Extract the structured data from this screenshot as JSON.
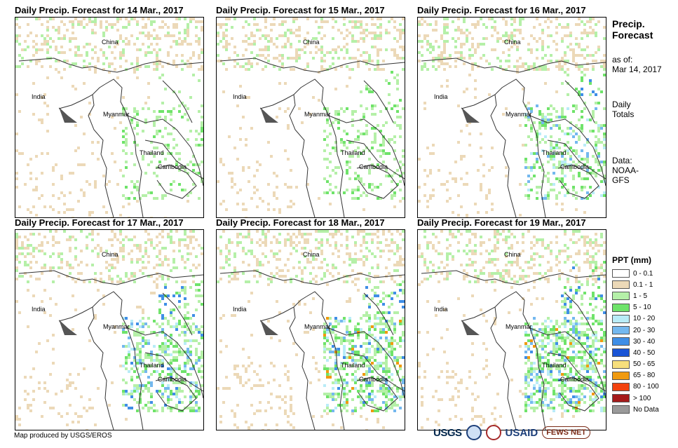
{
  "panels": [
    {
      "title": "Daily Precip. Forecast for 14 Mar., 2017"
    },
    {
      "title": "Daily Precip. Forecast for 15 Mar., 2017"
    },
    {
      "title": "Daily Precip. Forecast for 16 Mar., 2017"
    },
    {
      "title": "Daily Precip. Forecast for 17 Mar., 2017"
    },
    {
      "title": "Daily Precip. Forecast for 18 Mar., 2017"
    },
    {
      "title": "Daily Precip. Forecast for 19 Mar., 2017"
    }
  ],
  "countries": {
    "china": "China",
    "india": "India",
    "myanmar": "Myanmar",
    "thailand": "Thailand",
    "cambodia": "Cambodia"
  },
  "sidebar": {
    "title_line1": "Precip.",
    "title_line2": "Forecast",
    "asof_label": "as of:",
    "asof_date": "Mar 14, 2017",
    "totals_line1": "Daily",
    "totals_line2": "Totals",
    "data_line1": "Data:",
    "data_line2": "NOAA-",
    "data_line3": "GFS"
  },
  "legend": {
    "title": "PPT (mm)",
    "items": [
      {
        "label": "0 - 0.1",
        "color": "#ffffff"
      },
      {
        "label": "0.1 - 1",
        "color": "#ecd9b8"
      },
      {
        "label": "1 - 5",
        "color": "#b5f0a8"
      },
      {
        "label": "5 - 10",
        "color": "#6fe36a"
      },
      {
        "label": "10 - 20",
        "color": "#b9ecf7"
      },
      {
        "label": "20 - 30",
        "color": "#74b8ef"
      },
      {
        "label": "30 - 40",
        "color": "#3f8ee6"
      },
      {
        "label": "40 - 50",
        "color": "#1a55d6"
      },
      {
        "label": "50 - 65",
        "color": "#f7df7c"
      },
      {
        "label": "65 - 80",
        "color": "#f09a10"
      },
      {
        "label": "80 - 100",
        "color": "#f2420f"
      },
      {
        "label": "> 100",
        "color": "#a51b1b"
      },
      {
        "label": "No Data",
        "color": "#9a9a9a"
      }
    ]
  },
  "credit": "Map produced by USGS/EROS",
  "logos": {
    "usgs": "USGS",
    "usaid": "USAID",
    "fews": "FEWS NET"
  }
}
